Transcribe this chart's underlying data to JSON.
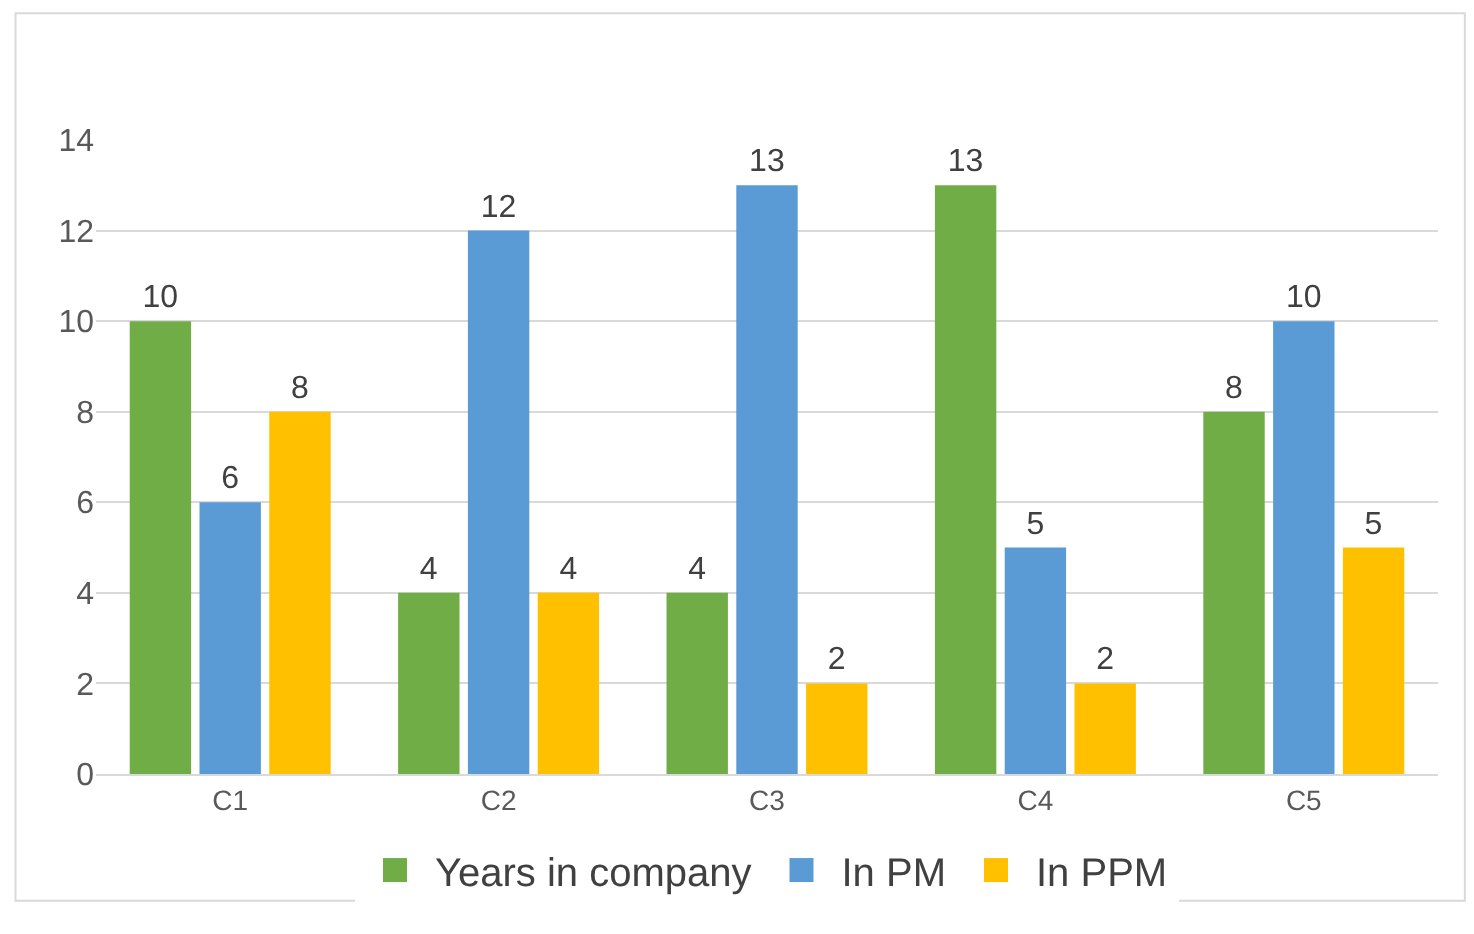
{
  "chart_data": {
    "type": "bar",
    "categories": [
      "C1",
      "C2",
      "C3",
      "C4",
      "C5"
    ],
    "series": [
      {
        "name": "Years in company",
        "color": "#70ad47",
        "values": [
          10,
          4,
          4,
          13,
          8
        ]
      },
      {
        "name": "In PM",
        "color": "#5b9bd5",
        "values": [
          6,
          12,
          13,
          5,
          10
        ]
      },
      {
        "name": "In PPM",
        "color": "#ffc000",
        "values": [
          8,
          4,
          2,
          2,
          5
        ]
      }
    ],
    "ylim": [
      0,
      14
    ],
    "yticks": [
      0,
      2,
      4,
      6,
      8,
      10,
      12,
      14
    ],
    "grid": "y",
    "legend": "bottom",
    "data_labels": true
  }
}
